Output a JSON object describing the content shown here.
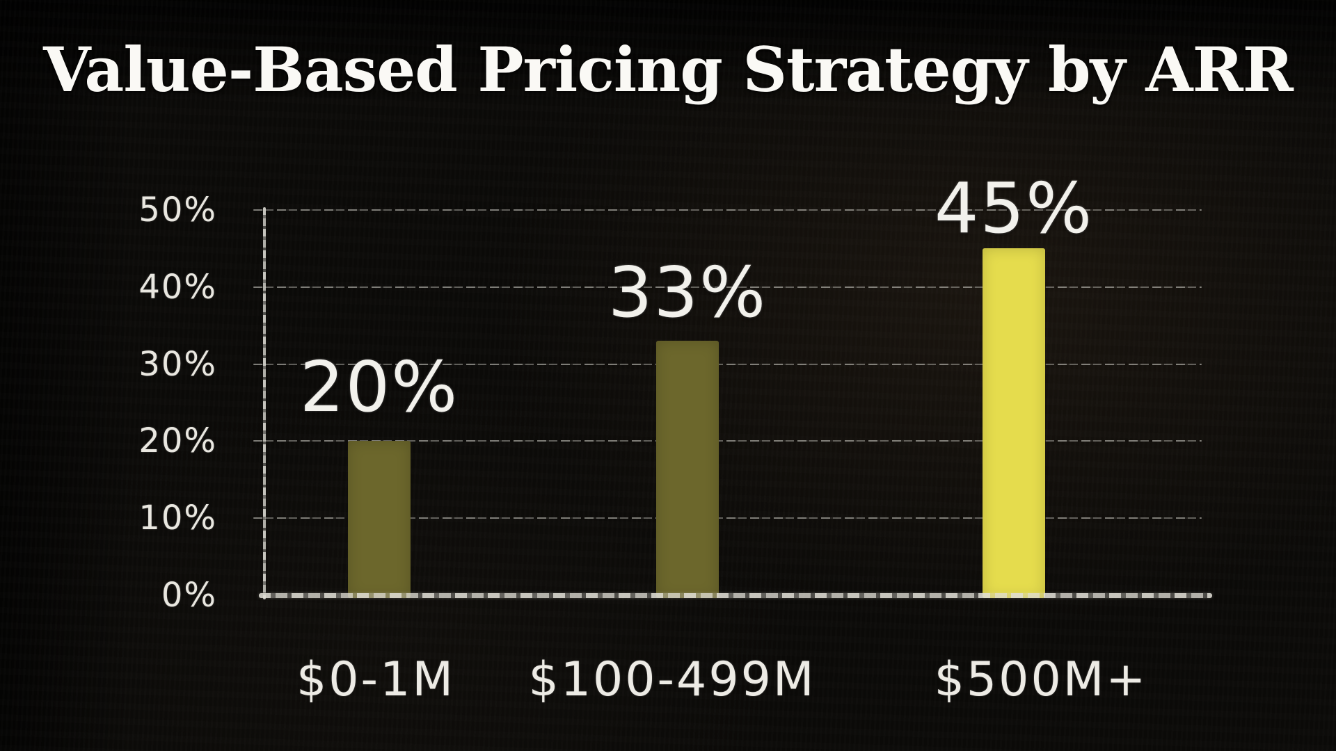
{
  "title": "Value-Based Pricing Strategy by ARR",
  "colors": {
    "background": "#0b0a08",
    "title_text": "#faf9f5",
    "label_text": "#edebe5",
    "grid_line": "#e4e3db",
    "axis_line": "#e1dfd6",
    "bar_olive": "#6c672c",
    "bar_yellow": "#e5dc4d"
  },
  "chart_data": {
    "type": "bar",
    "title": "Value-Based Pricing Strategy by ARR",
    "xlabel": "",
    "ylabel": "",
    "categories": [
      "$0-1M",
      "$100-499M",
      "$500M+"
    ],
    "values": [
      20,
      33,
      45
    ],
    "value_labels": [
      "20%",
      "33%",
      "45%"
    ],
    "bar_colors": [
      "#6c672c",
      "#6c672c",
      "#e5dc4d"
    ],
    "highlight_index": 2,
    "ylim": [
      0,
      50
    ],
    "y_ticks": [
      {
        "label": "0%",
        "value": 0
      },
      {
        "label": "10%",
        "value": 10
      },
      {
        "label": "20%",
        "value": 20
      },
      {
        "label": "30%",
        "value": 30
      },
      {
        "label": "40%",
        "value": 40
      },
      {
        "label": "50%",
        "value": 50
      }
    ],
    "grid": true,
    "legend": false,
    "style": "hand-drawn chalkboard, dark background, white chalk text"
  }
}
